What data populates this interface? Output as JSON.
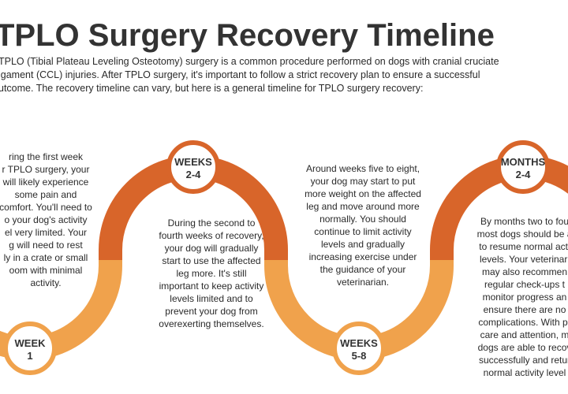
{
  "header": {
    "title": "TPLO Surgery Recovery Timeline",
    "intro": [
      "TPLO (Tibial Plateau Leveling Osteotomy) surgery is a common procedure performed on dogs with cranial cruciate",
      "igament (CCL) injuries. After TPLO surgery, it's important to follow a strict recovery plan to ensure a successful",
      "utcome. The recovery timeline can vary, but here is a general timeline for TPLO surgery recovery:"
    ]
  },
  "stages": [
    {
      "label": [
        "WEEK",
        "1"
      ],
      "text": [
        "ring the first week",
        "r TPLO surgery, your",
        "will likely experience",
        "some pain and",
        "comfort. You'll need to",
        "o your dog's activity",
        "el very limited. Your",
        "g will need to rest",
        "ly in a crate or small",
        "oom with minimal",
        "activity."
      ]
    },
    {
      "label": [
        "WEEKS",
        "2-4"
      ],
      "text": [
        "During the second to",
        "fourth weeks of recovery,",
        "your dog will gradually",
        "start to use the affected",
        "leg more. It's still",
        "important to keep activity",
        "levels limited and to",
        "prevent your dog from",
        "overexerting themselves."
      ]
    },
    {
      "label": [
        "WEEKS",
        "5-8"
      ],
      "text": [
        "Around weeks five to eight,",
        "your dog may start to put",
        "more weight on the affected",
        "leg and move around more",
        "normally. You should",
        "continue to limit activity",
        "levels and gradually",
        "increasing exercise under",
        "the guidance of your",
        "veterinarian."
      ]
    },
    {
      "label": [
        "MONTHS",
        "2-4"
      ],
      "text": [
        "By months two to fou",
        "most dogs should be a",
        "to resume normal acti",
        "levels. Your veterinari",
        "may also recommen",
        "regular check-ups t",
        "monitor progress an",
        "ensure there are no",
        "complications. With pr",
        "care and attention, m",
        "dogs are able to recov",
        "successfully and retur",
        "normal activity level"
      ]
    }
  ]
}
